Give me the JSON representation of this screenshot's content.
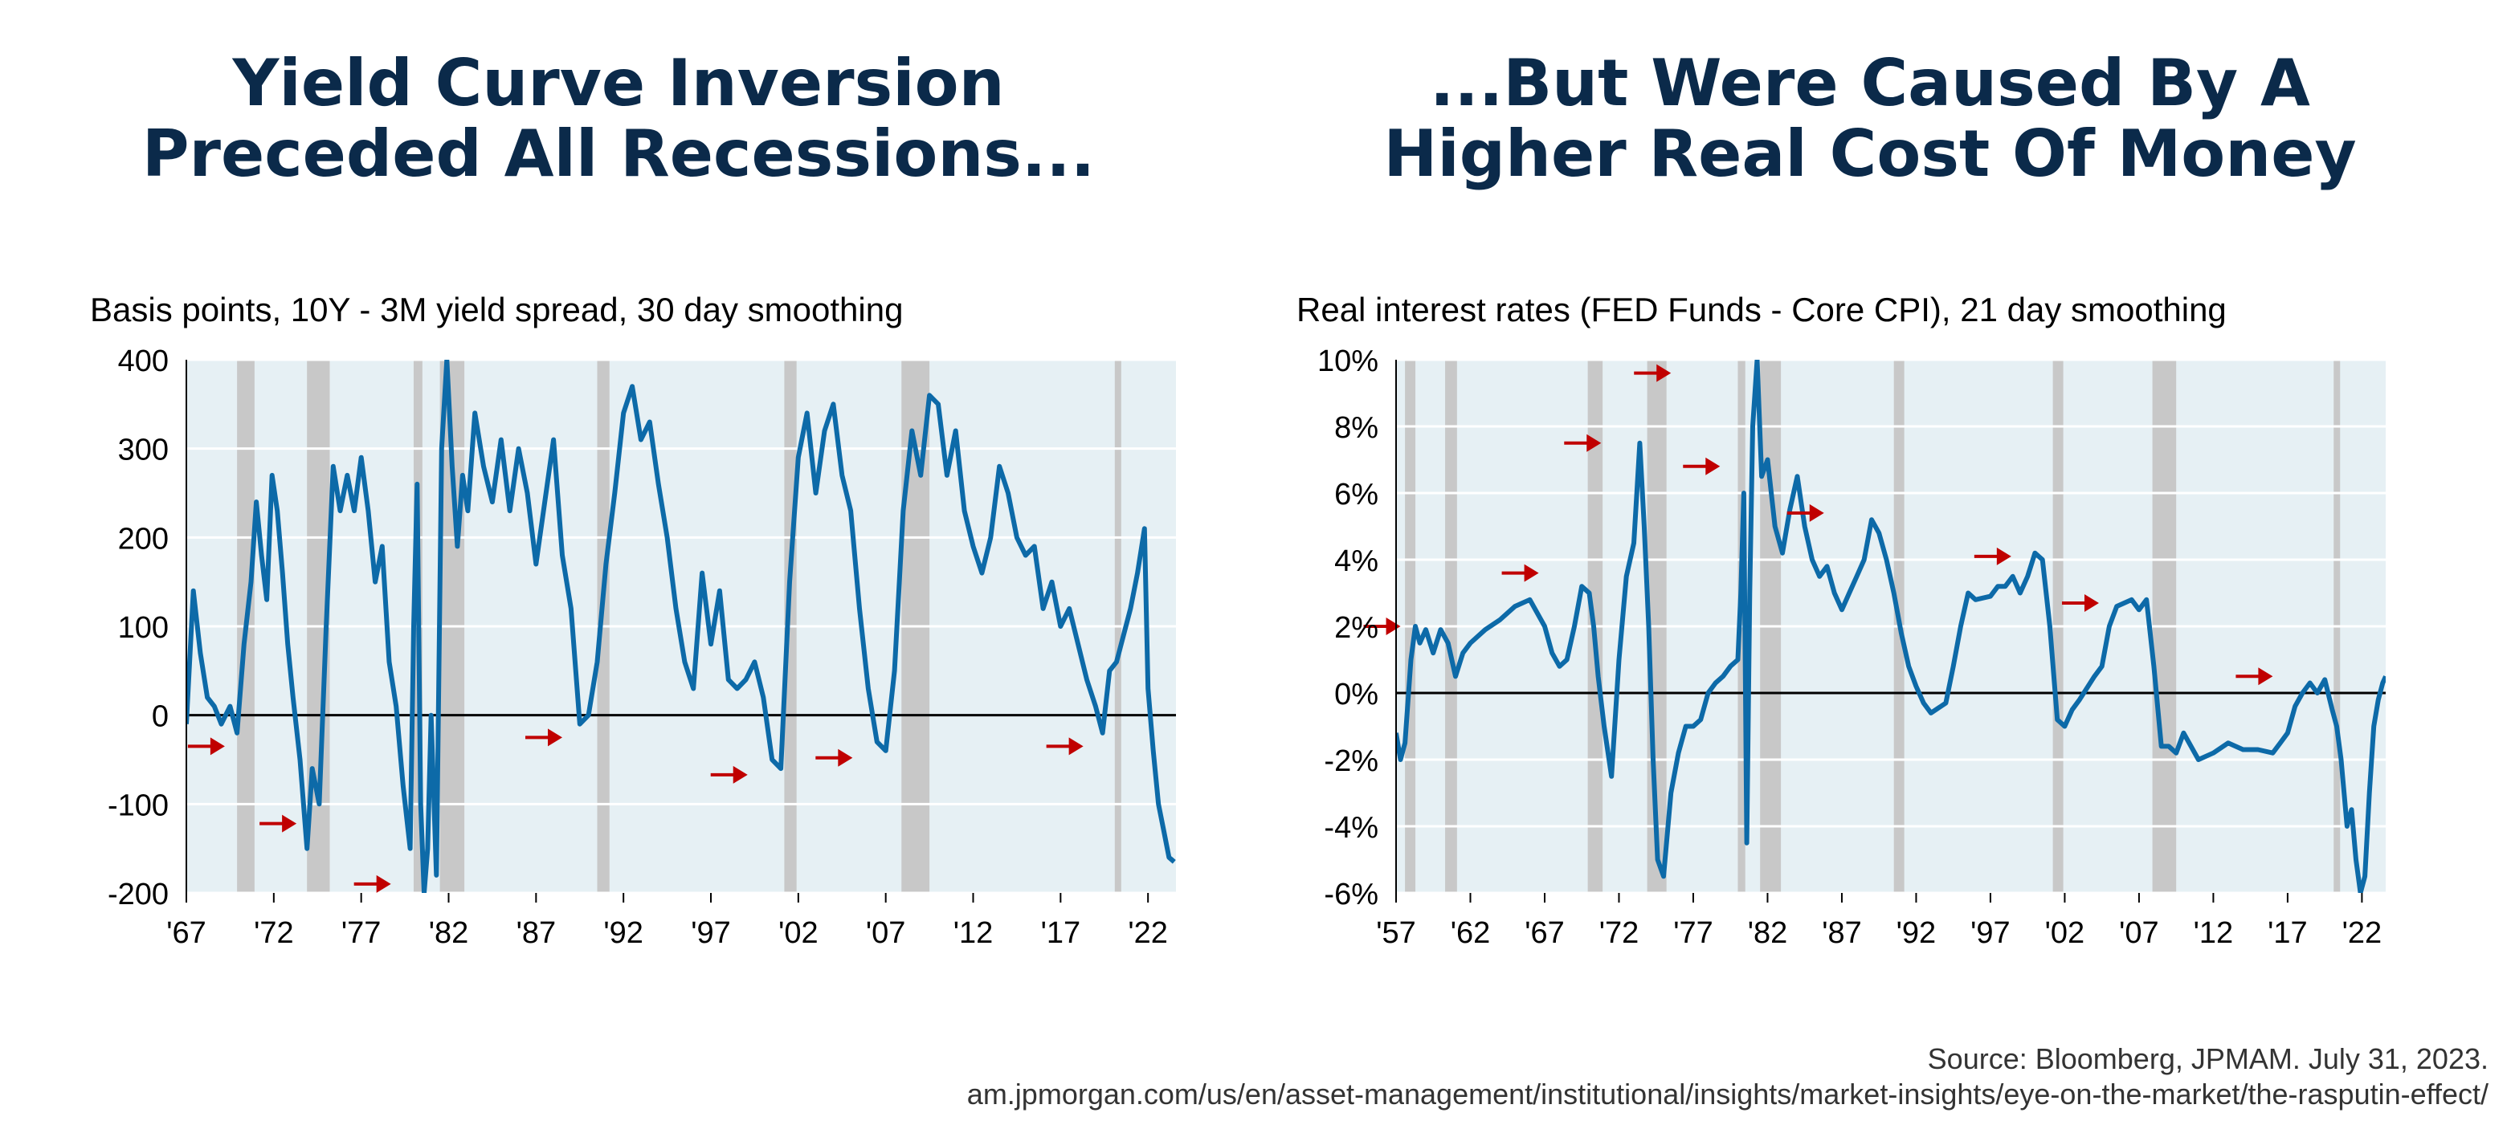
{
  "left_title": "Yield Curve Inversion\nPreceded All Recessions...",
  "right_title": "...But Were Caused By A\nHigher Real Cost Of Money",
  "footer": {
    "source": "Source: Bloomberg, JPMAM. July 31, 2023.",
    "url": "am.jpmorgan.com/us/en/asset-management/institutional/insights/market-insights/eye-on-the-market/the-rasputin-effect/"
  },
  "colors": {
    "line": "#0d6aa8",
    "recession": "#c8c8c8",
    "plot_bg": "#e6f0f4",
    "arrow": "#c00000",
    "title": "#0b2a4a"
  },
  "chart_data": [
    {
      "type": "line",
      "subtitle": "Basis points, 10Y - 3M yield spread, 30 day smoothing",
      "xlim": [
        1967,
        2023.6
      ],
      "ylim": [
        -200,
        400
      ],
      "x_tick_values": [
        1967,
        1972,
        1977,
        1982,
        1987,
        1992,
        1997,
        2002,
        2007,
        2012,
        2017,
        2022
      ],
      "x_tick_labels": [
        "'67",
        "'72",
        "'77",
        "'82",
        "'87",
        "'92",
        "'97",
        "'02",
        "'07",
        "'12",
        "'17",
        "'22"
      ],
      "y_tick_values": [
        400,
        300,
        200,
        100,
        0,
        -100,
        -200
      ],
      "y_tick_labels": [
        "400",
        "300",
        "200",
        "100",
        "0",
        "-100",
        "-200"
      ],
      "grid": true,
      "recessions": [
        [
          1969.9,
          1970.9
        ],
        [
          1973.9,
          1975.2
        ],
        [
          1980.0,
          1980.5
        ],
        [
          1981.5,
          1982.9
        ],
        [
          1990.5,
          1991.2
        ],
        [
          2001.2,
          2001.9
        ],
        [
          2007.9,
          2009.5
        ],
        [
          2020.1,
          2020.3
        ]
      ],
      "arrows": [
        [
          1969.2,
          -35
        ],
        [
          1973.3,
          -122
        ],
        [
          1978.7,
          -190
        ],
        [
          1988.5,
          -25
        ],
        [
          1999.1,
          -67
        ],
        [
          2005.1,
          -48
        ],
        [
          2018.3,
          -35
        ]
      ],
      "series": [
        {
          "x": [
            1967.0,
            1967.4,
            1967.8,
            1968.2,
            1968.6,
            1969.0,
            1969.5,
            1969.9,
            1970.3,
            1970.7,
            1971.0,
            1971.3,
            1971.6,
            1971.9,
            1972.2,
            1972.5,
            1972.8,
            1973.1,
            1973.5,
            1973.9,
            1974.2,
            1974.6,
            1975.0,
            1975.4,
            1975.8,
            1976.2,
            1976.6,
            1977.0,
            1977.4,
            1977.8,
            1978.2,
            1978.6,
            1979.0,
            1979.4,
            1979.8,
            1980.0,
            1980.2,
            1980.4,
            1980.6,
            1980.8,
            1981.0,
            1981.3,
            1981.6,
            1981.9,
            1982.2,
            1982.5,
            1982.8,
            1983.1,
            1983.5,
            1984.0,
            1984.5,
            1985.0,
            1985.5,
            1986.0,
            1986.5,
            1987.0,
            1987.5,
            1988.0,
            1988.5,
            1989.0,
            1989.5,
            1990.0,
            1990.5,
            1991.0,
            1991.5,
            1992.0,
            1992.5,
            1993.0,
            1993.5,
            1994.0,
            1994.5,
            1995.0,
            1995.5,
            1996.0,
            1996.5,
            1997.0,
            1997.5,
            1998.0,
            1998.5,
            1999.0,
            1999.5,
            2000.0,
            2000.5,
            2001.0,
            2001.5,
            2002.0,
            2002.5,
            2003.0,
            2003.5,
            2004.0,
            2004.5,
            2005.0,
            2005.5,
            2006.0,
            2006.5,
            2007.0,
            2007.5,
            2008.0,
            2008.5,
            2009.0,
            2009.5,
            2010.0,
            2010.5,
            2011.0,
            2011.5,
            2012.0,
            2012.5,
            2013.0,
            2013.5,
            2014.0,
            2014.5,
            2015.0,
            2015.5,
            2016.0,
            2016.5,
            2017.0,
            2017.5,
            2018.0,
            2018.5,
            2019.0,
            2019.4,
            2019.8,
            2020.2,
            2020.6,
            2021.0,
            2021.4,
            2021.8,
            2022.0,
            2022.3,
            2022.6,
            2022.9,
            2023.2,
            2023.5
          ],
          "y": [
            -10,
            140,
            70,
            20,
            10,
            -10,
            10,
            -20,
            80,
            150,
            240,
            180,
            130,
            270,
            230,
            160,
            80,
            20,
            -50,
            -150,
            -60,
            -100,
            100,
            280,
            230,
            270,
            230,
            290,
            230,
            150,
            190,
            60,
            10,
            -80,
            -150,
            100,
            260,
            -100,
            -200,
            -150,
            0,
            -180,
            300,
            400,
            280,
            190,
            270,
            230,
            340,
            280,
            240,
            310,
            230,
            300,
            250,
            170,
            240,
            310,
            180,
            120,
            -10,
            0,
            60,
            170,
            250,
            340,
            370,
            310,
            330,
            260,
            200,
            120,
            60,
            30,
            160,
            80,
            140,
            40,
            30,
            40,
            60,
            20,
            -50,
            -60,
            150,
            290,
            340,
            250,
            320,
            350,
            270,
            230,
            120,
            30,
            -30,
            -40,
            50,
            230,
            320,
            270,
            360,
            350,
            270,
            320,
            230,
            190,
            160,
            200,
            280,
            250,
            200,
            180,
            190,
            120,
            150,
            100,
            120,
            80,
            40,
            10,
            -20,
            50,
            60,
            90,
            120,
            160,
            210,
            30,
            -40,
            -100,
            -130,
            -160,
            -165
          ]
        }
      ]
    },
    {
      "type": "line",
      "subtitle": "Real interest rates (FED Funds - Core CPI), 21 day smoothing",
      "xlim": [
        1957,
        2023.6
      ],
      "ylim": [
        -6,
        10
      ],
      "x_tick_values": [
        1957,
        1962,
        1967,
        1972,
        1977,
        1982,
        1987,
        1992,
        1997,
        2002,
        2007,
        2012,
        2017,
        2022
      ],
      "x_tick_labels": [
        "'57",
        "'62",
        "'67",
        "'72",
        "'77",
        "'82",
        "'87",
        "'92",
        "'97",
        "'02",
        "'07",
        "'12",
        "'17",
        "'22"
      ],
      "y_tick_values": [
        10,
        8,
        6,
        4,
        2,
        0,
        -2,
        -4,
        -6
      ],
      "y_tick_labels": [
        "10%",
        "8%",
        "6%",
        "4%",
        "2%",
        "0%",
        "-2%",
        "-4%",
        "-6%"
      ],
      "grid": true,
      "recessions": [
        [
          1957.6,
          1958.3
        ],
        [
          1960.3,
          1961.1
        ],
        [
          1969.9,
          1970.9
        ],
        [
          1973.9,
          1975.2
        ],
        [
          1980.0,
          1980.5
        ],
        [
          1981.5,
          1982.9
        ],
        [
          1990.5,
          1991.2
        ],
        [
          2001.2,
          2001.9
        ],
        [
          2007.9,
          2009.5
        ],
        [
          2020.1,
          2020.3
        ]
      ],
      "arrows": [
        [
          1957.3,
          2.0
        ],
        [
          1966.6,
          3.6
        ],
        [
          1970.8,
          7.5
        ],
        [
          1975.5,
          9.6
        ],
        [
          1978.8,
          6.8
        ],
        [
          1985.8,
          5.4
        ],
        [
          1998.4,
          4.1
        ],
        [
          2004.3,
          2.7
        ],
        [
          2016.0,
          0.5
        ]
      ],
      "series": [
        {
          "x": [
            1957.0,
            1957.3,
            1957.6,
            1958.0,
            1958.3,
            1958.6,
            1959.0,
            1959.5,
            1960.0,
            1960.5,
            1961.0,
            1961.5,
            1962.0,
            1963.0,
            1964.0,
            1965.0,
            1966.0,
            1967.0,
            1967.5,
            1968.0,
            1968.5,
            1969.0,
            1969.5,
            1970.0,
            1970.3,
            1970.6,
            1971.0,
            1971.5,
            1972.0,
            1972.5,
            1973.0,
            1973.4,
            1973.7,
            1974.0,
            1974.3,
            1974.6,
            1975.0,
            1975.5,
            1976.0,
            1976.5,
            1977.0,
            1977.5,
            1978.0,
            1978.5,
            1979.0,
            1979.5,
            1980.0,
            1980.2,
            1980.4,
            1980.6,
            1980.8,
            1981.0,
            1981.3,
            1981.6,
            1982.0,
            1982.5,
            1983.0,
            1983.5,
            1984.0,
            1984.5,
            1985.0,
            1985.5,
            1986.0,
            1986.5,
            1987.0,
            1987.5,
            1988.0,
            1988.5,
            1989.0,
            1989.5,
            1990.0,
            1990.5,
            1991.0,
            1991.5,
            1992.0,
            1992.5,
            1993.0,
            1994.0,
            1994.5,
            1995.0,
            1995.5,
            1996.0,
            1997.0,
            1997.5,
            1998.0,
            1998.5,
            1999.0,
            1999.5,
            2000.0,
            2000.5,
            2001.0,
            2001.5,
            2002.0,
            2002.5,
            2003.0,
            2004.0,
            2004.5,
            2005.0,
            2005.5,
            2006.0,
            2006.5,
            2007.0,
            2007.5,
            2008.0,
            2008.5,
            2009.0,
            2009.5,
            2010.0,
            2011.0,
            2012.0,
            2013.0,
            2014.0,
            2015.0,
            2016.0,
            2016.5,
            2017.0,
            2017.5,
            2018.0,
            2018.5,
            2019.0,
            2019.5,
            2020.0,
            2020.3,
            2020.6,
            2021.0,
            2021.3,
            2021.6,
            2021.9,
            2022.2,
            2022.5,
            2022.8,
            2023.1,
            2023.4,
            2023.6
          ],
          "y": [
            -1.2,
            -2.0,
            -1.5,
            1.0,
            2.0,
            1.5,
            1.9,
            1.2,
            1.9,
            1.5,
            0.5,
            1.2,
            1.5,
            1.9,
            2.2,
            2.6,
            2.8,
            2.0,
            1.2,
            0.8,
            1.0,
            2.0,
            3.2,
            3.0,
            2.0,
            0.5,
            -1.0,
            -2.5,
            1.0,
            3.5,
            4.5,
            7.5,
            5.0,
            2.0,
            -2.0,
            -5.0,
            -5.5,
            -3.0,
            -1.8,
            -1.0,
            -1.0,
            -0.8,
            0.0,
            0.3,
            0.5,
            0.8,
            1.0,
            3.0,
            6.0,
            -4.5,
            3.0,
            8.0,
            10.0,
            6.5,
            7.0,
            5.0,
            4.2,
            5.5,
            6.5,
            5.0,
            4.0,
            3.5,
            3.8,
            3.0,
            2.5,
            3.0,
            3.5,
            4.0,
            5.2,
            4.8,
            4.0,
            3.0,
            1.8,
            0.8,
            0.2,
            -0.3,
            -0.6,
            -0.3,
            0.8,
            2.0,
            3.0,
            2.8,
            2.9,
            3.2,
            3.2,
            3.5,
            3.0,
            3.5,
            4.2,
            4.0,
            2.0,
            -0.8,
            -1.0,
            -0.5,
            -0.2,
            0.5,
            0.8,
            2.0,
            2.6,
            2.7,
            2.8,
            2.5,
            2.8,
            0.8,
            -1.6,
            -1.6,
            -1.8,
            -1.2,
            -2.0,
            -1.8,
            -1.5,
            -1.7,
            -1.7,
            -1.8,
            -1.5,
            -1.2,
            -0.4,
            0.0,
            0.3,
            0.0,
            0.4,
            -0.5,
            -1.0,
            -2.0,
            -4.0,
            -3.5,
            -5.0,
            -6.0,
            -5.5,
            -3.0,
            -1.0,
            -0.2,
            0.3,
            0.5
          ]
        }
      ]
    }
  ]
}
